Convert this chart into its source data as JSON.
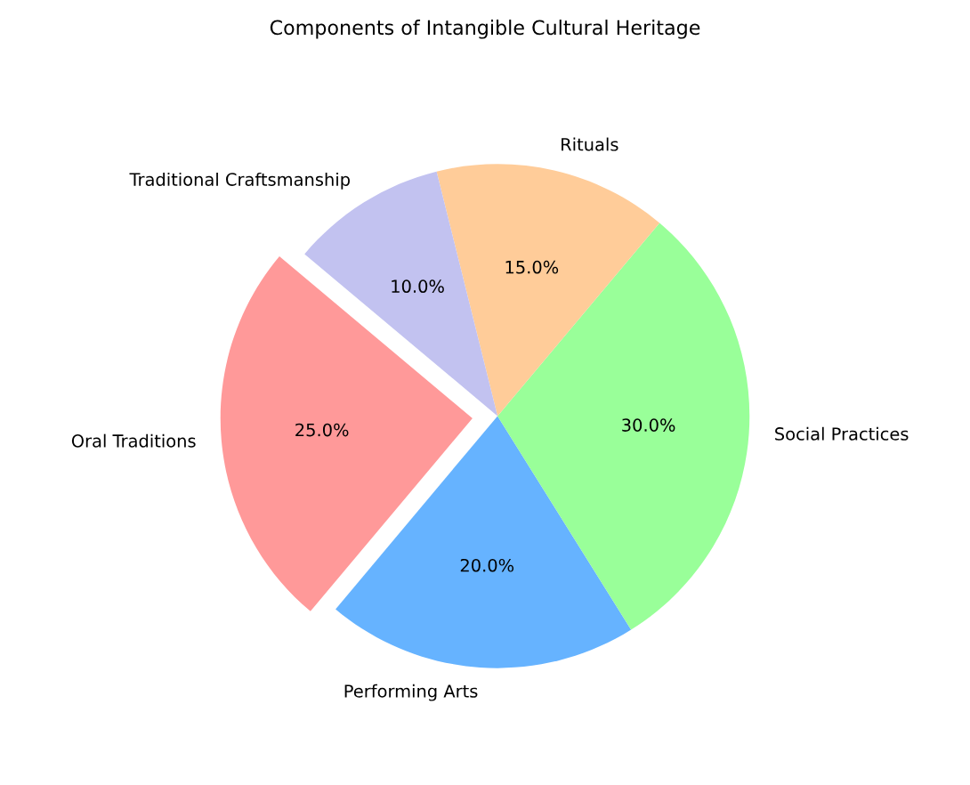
{
  "chart_data": {
    "type": "pie",
    "title": "Components of Intangible Cultural Heritage",
    "categories": [
      "Oral Traditions",
      "Performing Arts",
      "Social Practices",
      "Rituals",
      "Traditional Craftsmanship"
    ],
    "values": [
      25,
      20,
      30,
      15,
      10
    ],
    "colors": [
      "#ff9999",
      "#66b3ff",
      "#99ff99",
      "#ffcc99",
      "#c2c2f0"
    ],
    "value_labels": [
      "25.0%",
      "20.0%",
      "30.0%",
      "15.0%",
      "10.0%"
    ],
    "legend": false
  }
}
